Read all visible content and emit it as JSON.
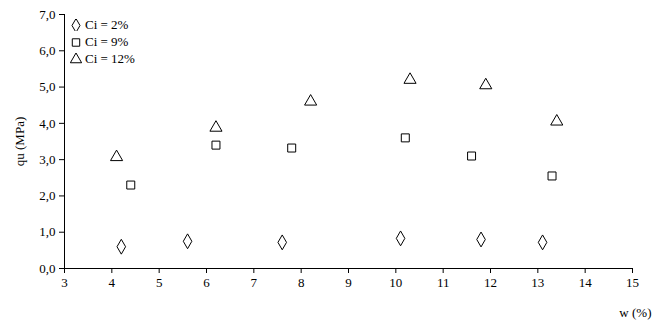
{
  "chart_data": {
    "type": "scatter",
    "x_label": "w (%)",
    "y_label": "qu (MPa)",
    "xlim": [
      3,
      15
    ],
    "xticks": [
      3,
      4,
      5,
      6,
      7,
      8,
      9,
      10,
      11,
      12,
      13,
      14,
      15
    ],
    "ylim": [
      0,
      7
    ],
    "yticks": [
      {
        "value": 0,
        "label": "0,0"
      },
      {
        "value": 1,
        "label": "1,0"
      },
      {
        "value": 2,
        "label": "2,0"
      },
      {
        "value": 3,
        "label": "3,0"
      },
      {
        "value": 4,
        "label": "4,0"
      },
      {
        "value": 5,
        "label": "5,0"
      },
      {
        "value": 6,
        "label": "6,0"
      },
      {
        "value": 7,
        "label": "7,0"
      }
    ],
    "grid": false,
    "legend": "upper left",
    "series": [
      {
        "name": "Ci = 2%",
        "color": "#000000",
        "marker": "diamond",
        "x": [
          4.2,
          5.6,
          7.6,
          10.1,
          11.8,
          13.1
        ],
        "values": [
          0.6,
          0.75,
          0.72,
          0.83,
          0.8,
          0.72
        ]
      },
      {
        "name": "Ci = 9%",
        "color": "#000000",
        "marker": "square",
        "x": [
          4.4,
          6.2,
          7.8,
          10.2,
          11.6,
          13.3
        ],
        "values": [
          2.3,
          3.4,
          3.32,
          3.6,
          3.1,
          2.55
        ]
      },
      {
        "name": "Ci = 12%",
        "color": "#000000",
        "marker": "triangle",
        "x": [
          4.1,
          6.2,
          8.2,
          10.3,
          11.9,
          13.4
        ],
        "values": [
          3.07,
          3.88,
          4.6,
          5.2,
          5.05,
          4.05
        ]
      }
    ]
  }
}
